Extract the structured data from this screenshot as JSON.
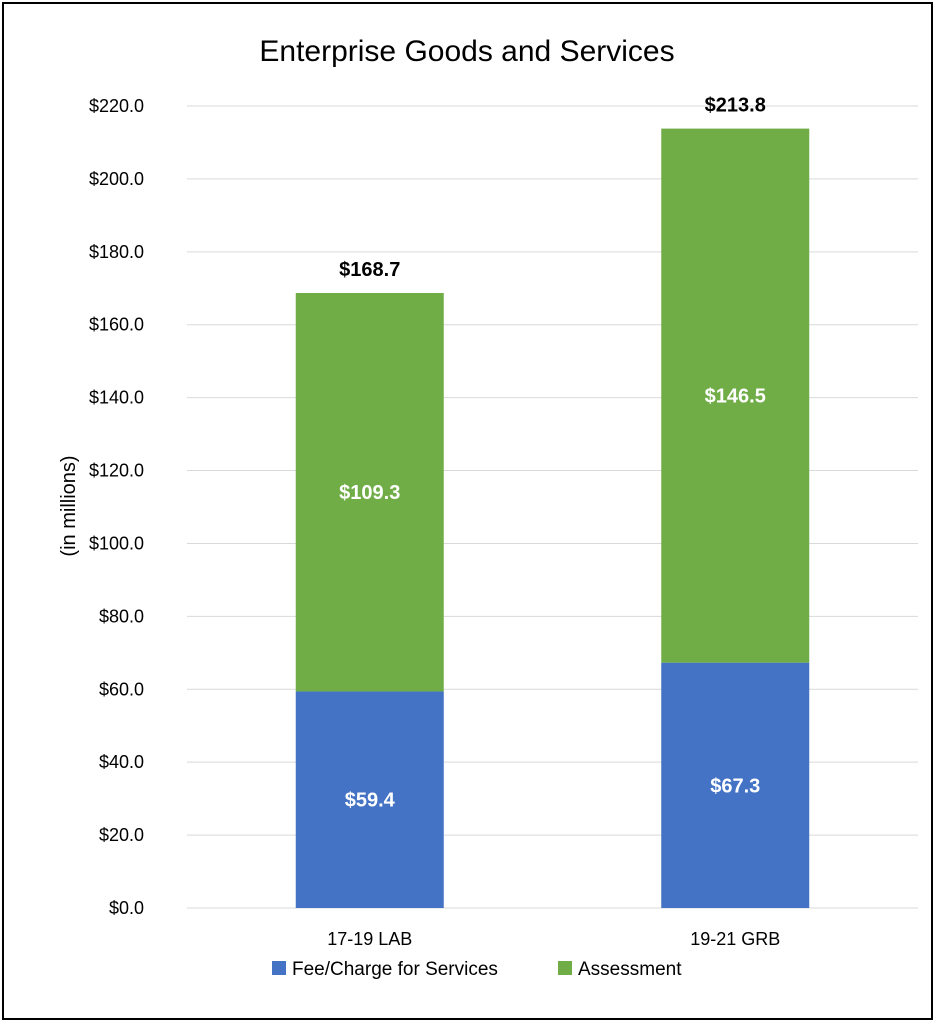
{
  "chart_data": {
    "type": "bar",
    "stacked": true,
    "title": "Enterprise Goods and Services",
    "ylabel": "(in millions)",
    "xlabel": "",
    "categories": [
      "17-19 LAB",
      "19-21 GRB"
    ],
    "series": [
      {
        "name": "Fee/Charge for Services",
        "values": [
          59.4,
          67.3
        ],
        "labels": [
          "$59.4",
          "$67.3"
        ],
        "color": "#4472c4"
      },
      {
        "name": "Assessment",
        "values": [
          109.3,
          146.5
        ],
        "labels": [
          "$109.3",
          "$146.5"
        ],
        "color": "#70ad47"
      }
    ],
    "totals": [
      168.7,
      213.8
    ],
    "total_labels": [
      "$168.7",
      "$213.8"
    ],
    "ylim": [
      0,
      220
    ],
    "yticks": [
      0,
      20,
      40,
      60,
      80,
      100,
      120,
      140,
      160,
      180,
      200,
      220
    ],
    "ytick_labels": [
      "$0.0",
      "$20.0",
      "$40.0",
      "$60.0",
      "$80.0",
      "$100.0",
      "$120.0",
      "$140.0",
      "$160.0",
      "$180.0",
      "$200.0",
      "$220.0"
    ],
    "grid": true,
    "legend_position": "bottom"
  }
}
